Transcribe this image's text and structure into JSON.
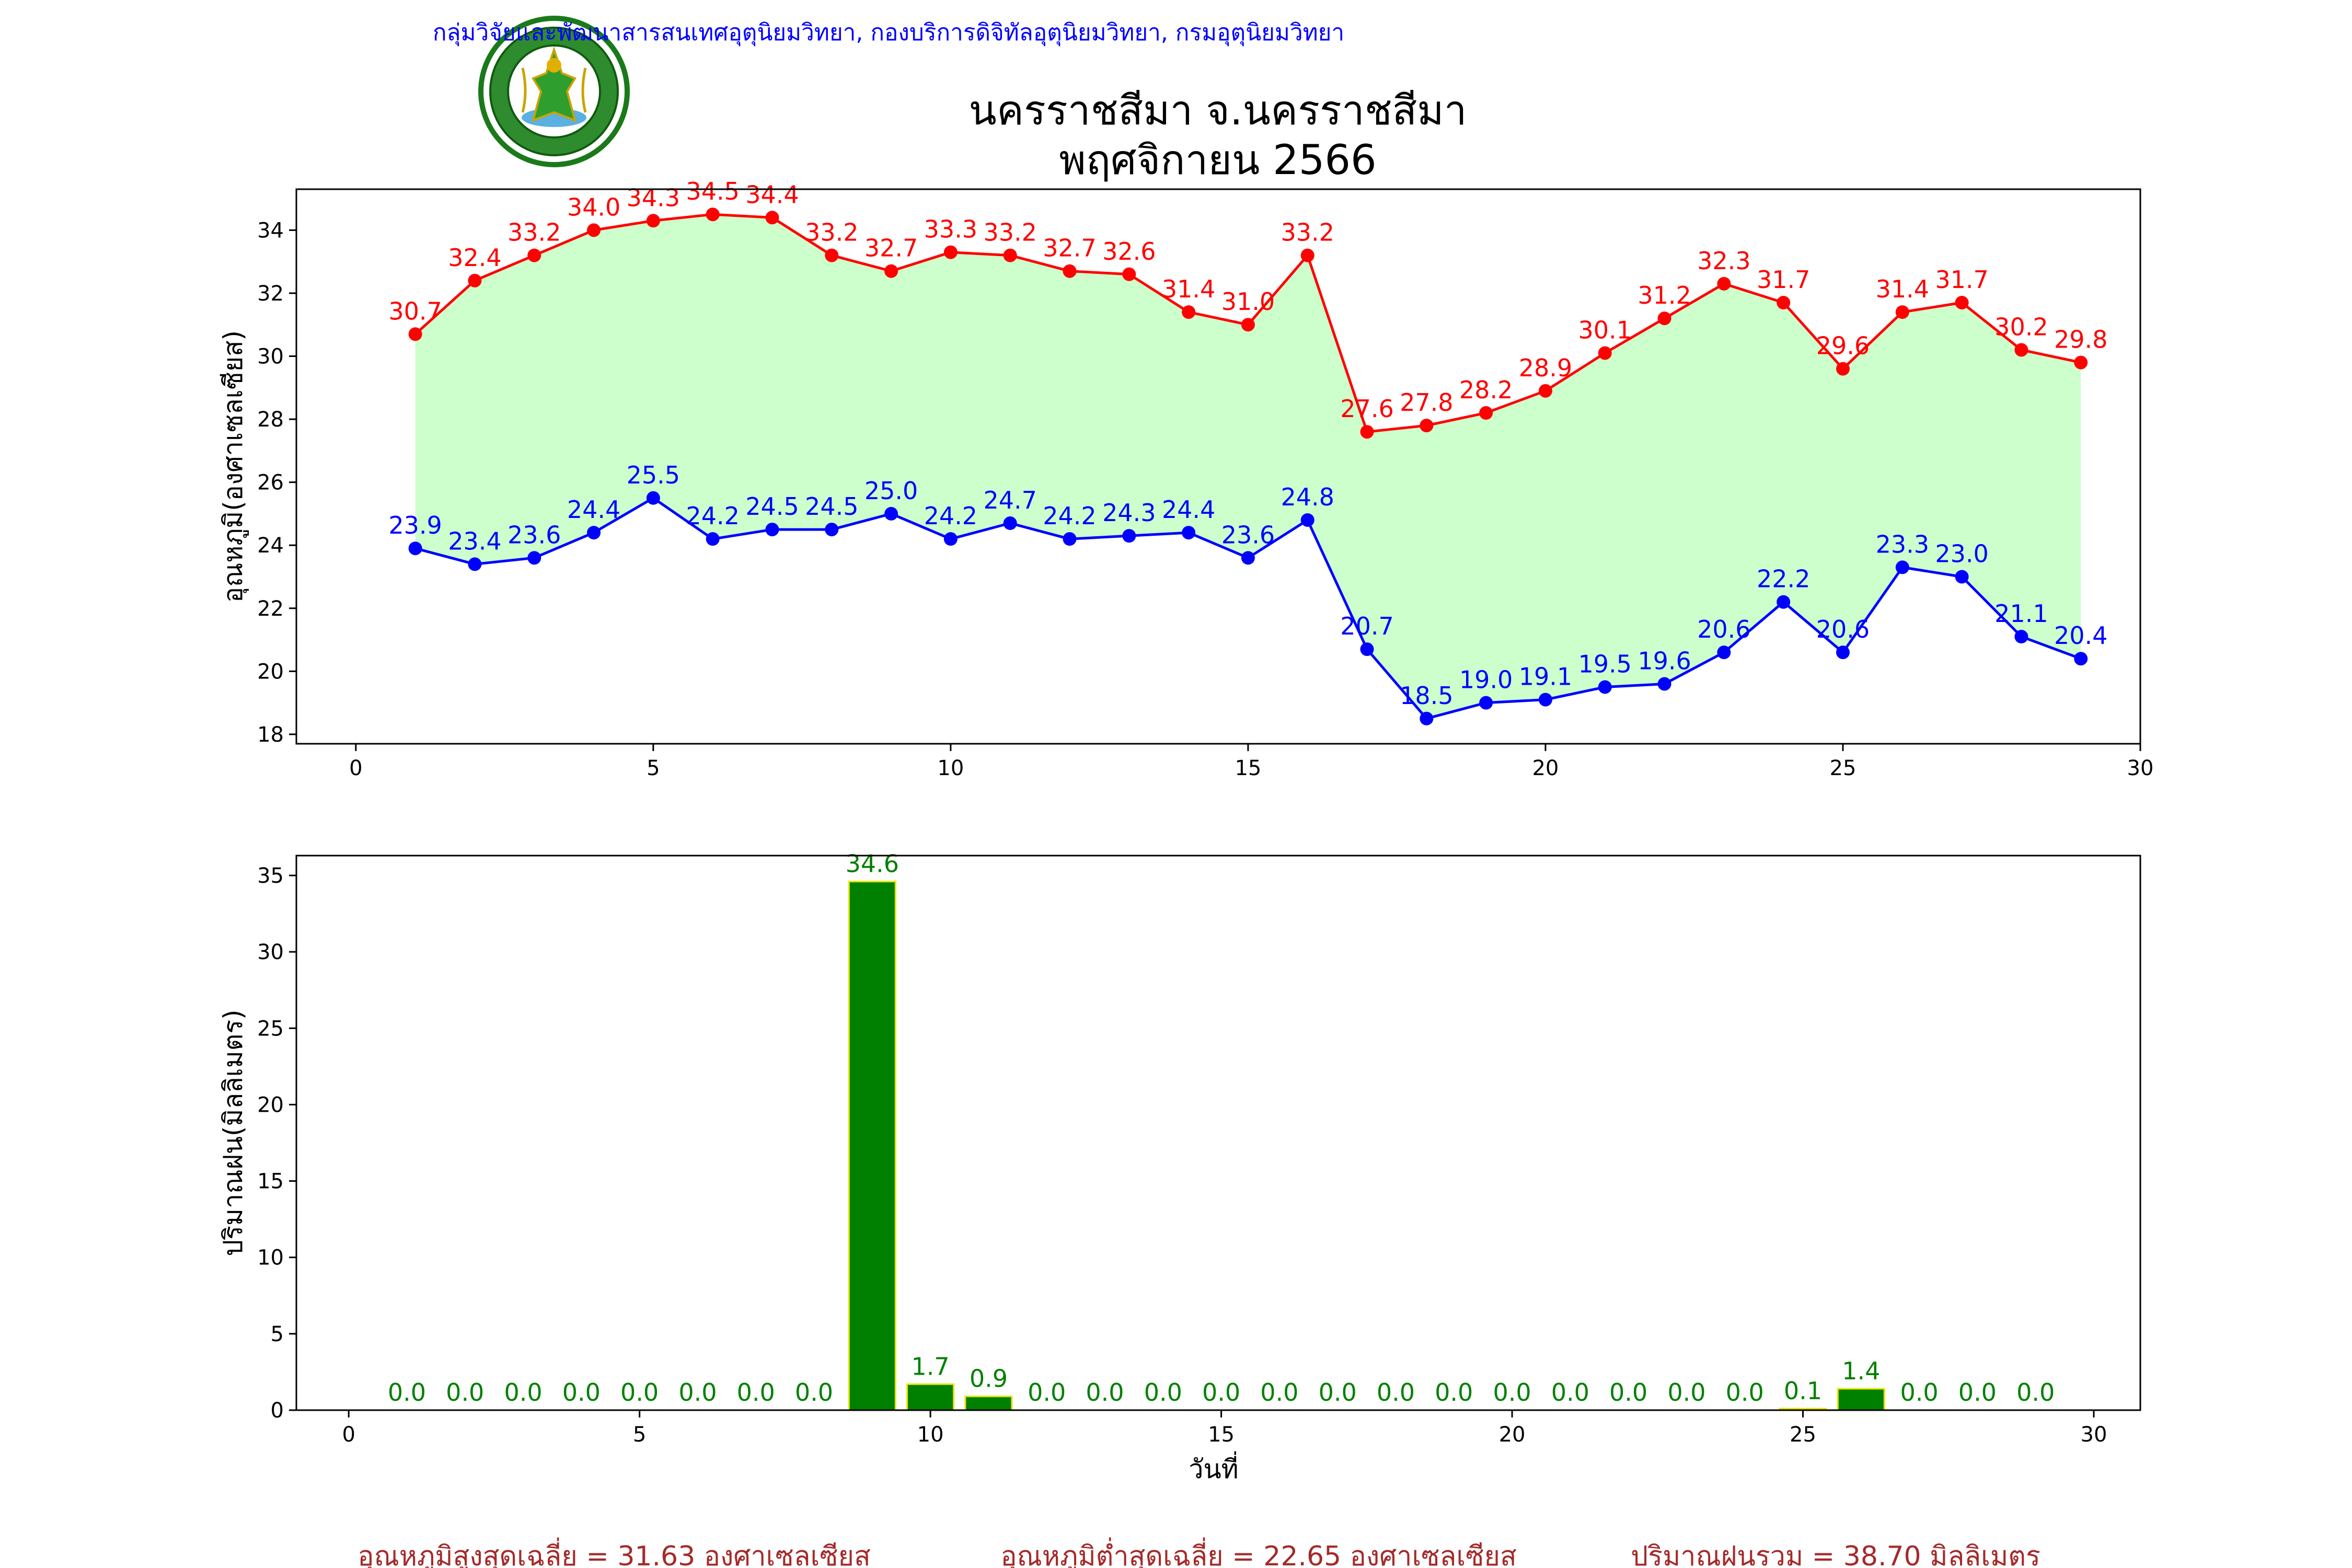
{
  "header": {
    "agency": "กลุ่มวิจัยและพัฒนาสารสนเทศอุตุนิยมวิทยา, กองบริการดิจิทัลอุตุนิยมวิทยา, กรมอุตุนิยมวิทยา",
    "title_line1": "นครราชสีมา จ.นครราชสีมา",
    "title_line2": "พฤศจิกายน 2566",
    "logo_top_text": "กรมอุตุนิยมวิทยา",
    "logo_bottom_text": "METEOROLOGICAL DEPARTMENT"
  },
  "summary": {
    "max_avg": "อุณหภูมิสูงสุดเฉลี่ย = 31.63 องศาเซลเซียส",
    "min_avg": "อุณหภูมิต่ำสุดเฉลี่ย = 22.65 องศาเซลเซียส",
    "rain_total": "ปริมาณฝนรวม = 38.70 มิลลิเมตร"
  },
  "colors": {
    "max_line": "#ff0000",
    "min_line": "#0000ff",
    "band_fill": "#ccffcc",
    "rain_bar": "#008000",
    "rain_edge": "#e6e600",
    "rain_label": "#008000",
    "summary_text": "#a52a2a"
  },
  "chart_data": [
    {
      "type": "line",
      "ylabel": "อุณหภูมิ(องศาเซลเซียส)",
      "xlim": [
        -1,
        30
      ],
      "ylim": [
        17.7,
        35.3
      ],
      "xticks": [
        0,
        5,
        10,
        15,
        20,
        25,
        30
      ],
      "yticks": [
        18,
        20,
        22,
        24,
        26,
        28,
        30,
        32,
        34
      ],
      "x": [
        1,
        2,
        3,
        4,
        5,
        6,
        7,
        8,
        9,
        10,
        11,
        12,
        13,
        14,
        15,
        16,
        17,
        18,
        19,
        20,
        21,
        22,
        23,
        24,
        25,
        26,
        27,
        28,
        29
      ],
      "series": [
        {
          "values": [
            30.7,
            32.4,
            33.2,
            34.0,
            34.3,
            34.5,
            34.4,
            33.2,
            32.7,
            33.3,
            33.2,
            32.7,
            32.6,
            31.4,
            31.0,
            33.2,
            27.6,
            27.8,
            28.2,
            28.9,
            30.1,
            31.2,
            32.3,
            31.7,
            29.6,
            31.4,
            31.7,
            30.2,
            29.8
          ]
        },
        {
          "values": [
            23.9,
            23.4,
            23.6,
            24.4,
            25.5,
            24.2,
            24.5,
            24.5,
            25.0,
            24.2,
            24.7,
            24.2,
            24.3,
            24.4,
            23.6,
            24.8,
            20.7,
            18.5,
            19.0,
            19.1,
            19.5,
            19.6,
            20.6,
            22.2,
            20.6,
            23.3,
            23.0,
            21.1,
            20.4
          ]
        }
      ],
      "grid": false
    },
    {
      "type": "bar",
      "xlabel": "วันที่",
      "ylabel": "ปริมาณฝน(มิลลิเมตร)",
      "xlim": [
        -0.9,
        30.8
      ],
      "ylim": [
        0,
        36.3
      ],
      "xticks": [
        0,
        5,
        10,
        15,
        20,
        25,
        30
      ],
      "yticks": [
        0,
        5,
        10,
        15,
        20,
        25,
        30,
        35
      ],
      "categories": [
        1,
        2,
        3,
        4,
        5,
        6,
        7,
        8,
        9,
        10,
        11,
        12,
        13,
        14,
        15,
        16,
        17,
        18,
        19,
        20,
        21,
        22,
        23,
        24,
        25,
        26,
        27,
        28,
        29
      ],
      "values": [
        0.0,
        0.0,
        0.0,
        0.0,
        0.0,
        0.0,
        0.0,
        0.0,
        34.6,
        1.7,
        0.9,
        0.0,
        0.0,
        0.0,
        0.0,
        0.0,
        0.0,
        0.0,
        0.0,
        0.0,
        0.0,
        0.0,
        0.0,
        0.0,
        0.1,
        1.4,
        0.0,
        0.0,
        0.0
      ],
      "grid": false
    }
  ]
}
